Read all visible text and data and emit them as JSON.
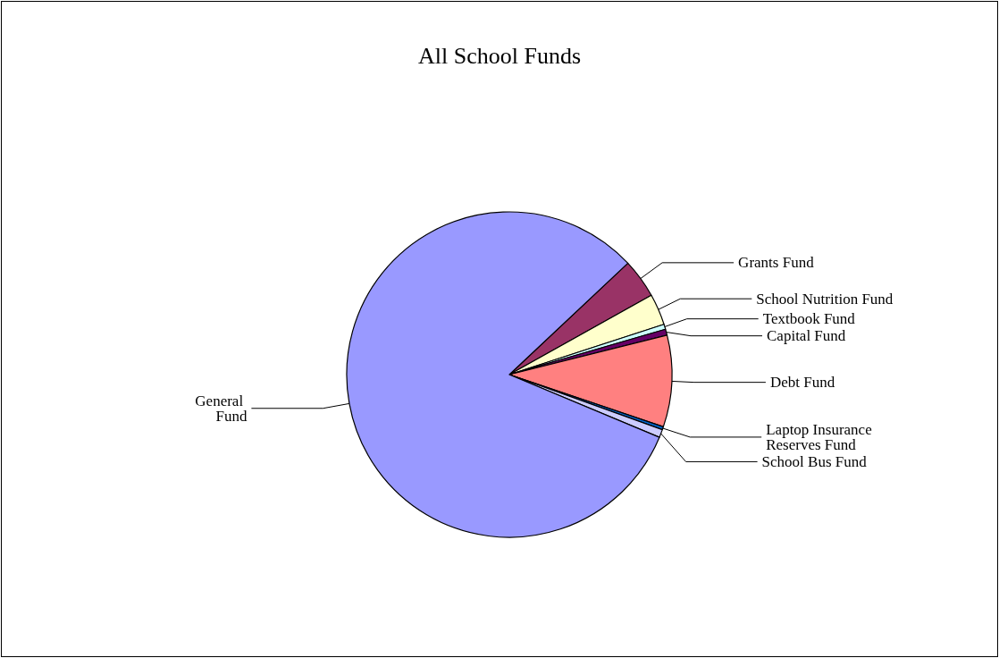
{
  "chart_data": {
    "type": "pie",
    "title": "All School Funds",
    "categories": [
      "Grants Fund",
      "School Nutrition Fund",
      "Textbook Fund",
      "Capital Fund",
      "Debt Fund",
      "Laptop Insurance Reserves Fund",
      "School Bus Fund",
      "General Fund"
    ],
    "values": [
      3.9,
      3.1,
      0.5,
      0.6,
      9.1,
      0.3,
      0.8,
      81.7
    ],
    "colors": [
      "#993366",
      "#ffffcc",
      "#ccffff",
      "#660066",
      "#ff8080",
      "#0066cc",
      "#ccccff",
      "#9999ff"
    ],
    "legend": false
  }
}
